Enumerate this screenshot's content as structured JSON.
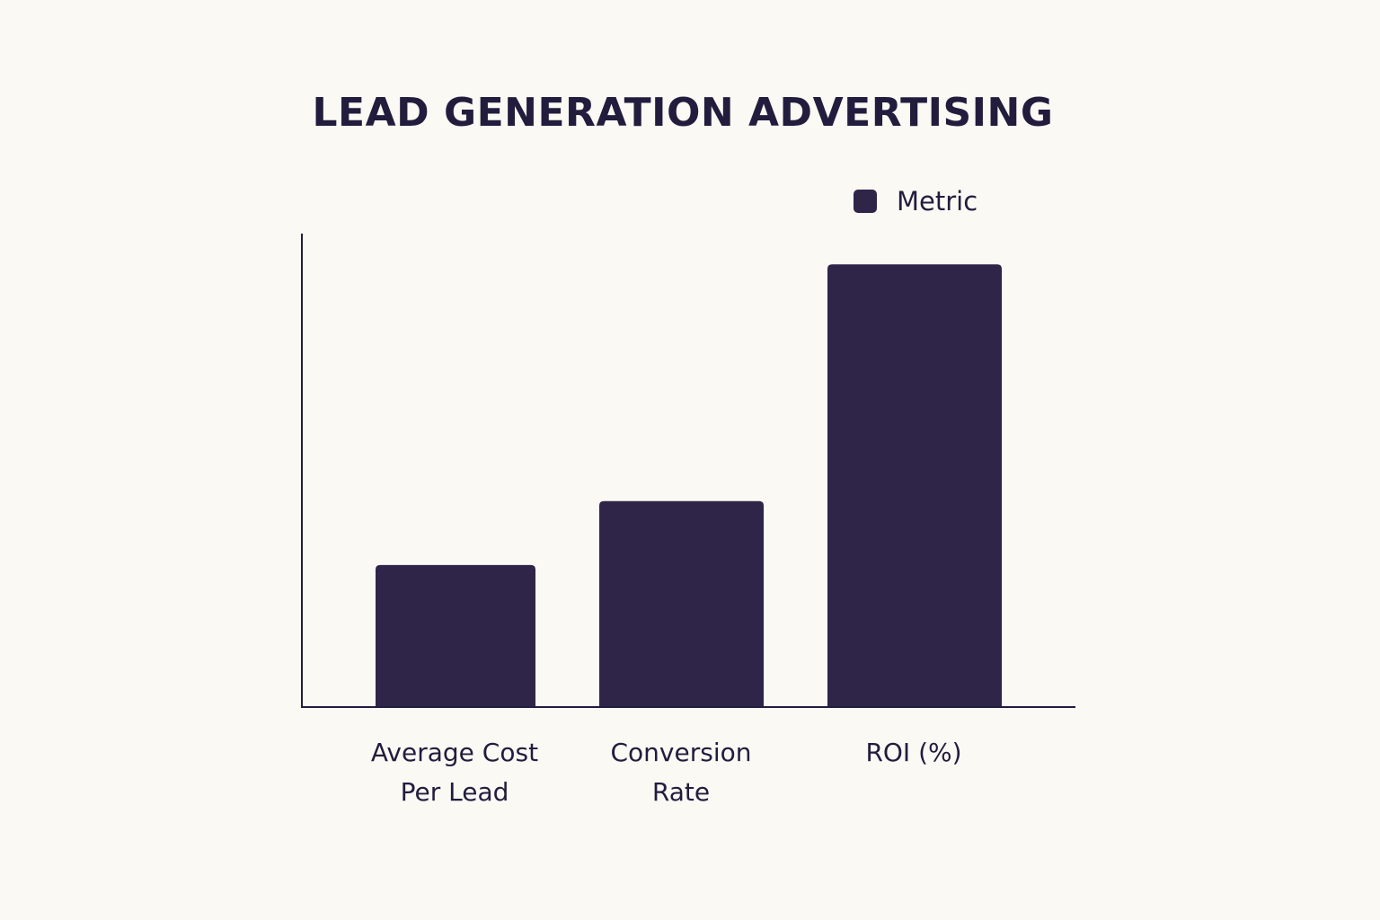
{
  "colors": {
    "background": "#fbf9f4",
    "bar": "#2f2549",
    "text": "#221d3d",
    "axis": "#221d3d"
  },
  "chart_data": {
    "type": "bar",
    "title": "LEAD GENERATION ADVERTISING",
    "xlabel": "",
    "ylabel": "",
    "legend_position": "top-right",
    "grid": false,
    "y_ticks_shown": false,
    "categories": [
      "Average Cost\nPer Lead",
      "Conversion\nRate",
      "ROI (%)"
    ],
    "series": [
      {
        "name": "Metric",
        "values": [
          30,
          43.5,
          93.5
        ]
      }
    ],
    "ylim": [
      0,
      100
    ]
  }
}
